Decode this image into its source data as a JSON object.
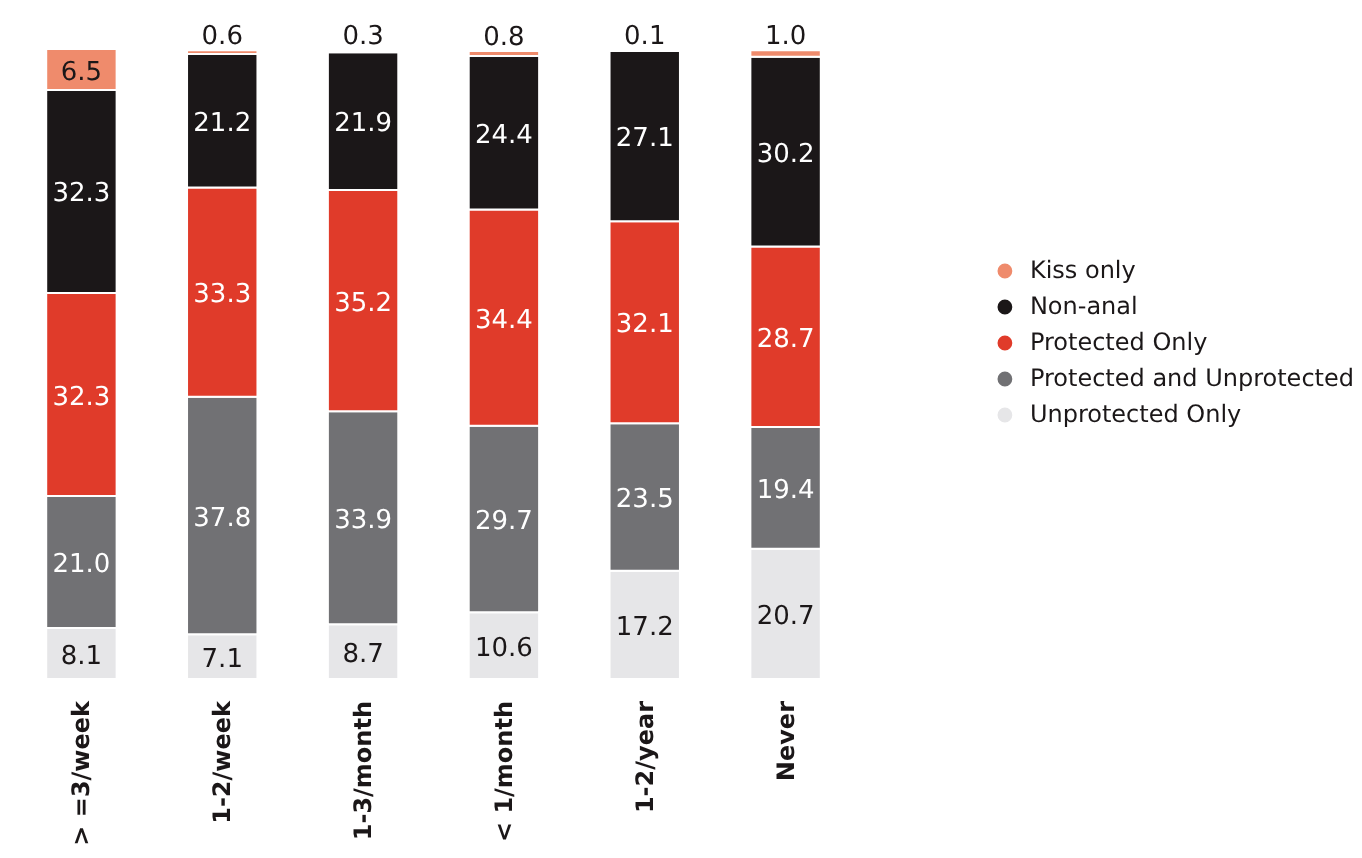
{
  "chart_data": {
    "type": "bar",
    "stacked": true,
    "legend": "right",
    "categories": [
      "> =3/week",
      "1-2/week",
      "1-3/month",
      "< 1/month",
      "1-2/year",
      "Never"
    ],
    "series": [
      {
        "name": "Unprotected Only",
        "color": "#e6e6e8",
        "values": [
          8.1,
          7.1,
          8.7,
          10.6,
          17.2,
          20.7
        ],
        "value_labels": [
          "8.1",
          "7.1",
          "8.7",
          "10.6",
          "17.2",
          "20.7"
        ]
      },
      {
        "name": "Protected and Unprotected",
        "color": "#717174",
        "values": [
          21.0,
          37.8,
          33.9,
          29.7,
          23.5,
          19.4
        ],
        "value_labels": [
          "21.0",
          "37.8",
          "33.9",
          "29.7",
          "23.5",
          "19.4"
        ]
      },
      {
        "name": "Protected Only",
        "color": "#e03b2a",
        "values": [
          32.3,
          33.3,
          35.2,
          34.4,
          32.1,
          28.7
        ],
        "value_labels": [
          "32.3",
          "33.3",
          "35.2",
          "34.4",
          "32.1",
          "28.7"
        ]
      },
      {
        "name": "Non-anal",
        "color": "#1b1718",
        "values": [
          32.3,
          21.2,
          21.9,
          24.4,
          27.1,
          30.2
        ],
        "value_labels": [
          "32.3",
          "21.2",
          "21.9",
          "24.4",
          "27.1",
          "30.2"
        ]
      },
      {
        "name": "Kiss only",
        "color": "#ef8b6c",
        "values": [
          6.5,
          0.6,
          0.3,
          0.8,
          0.1,
          1.0
        ],
        "value_labels": [
          "6.5",
          "0.6",
          "0.3",
          "0.8",
          "0.1",
          "1.0"
        ]
      }
    ]
  }
}
